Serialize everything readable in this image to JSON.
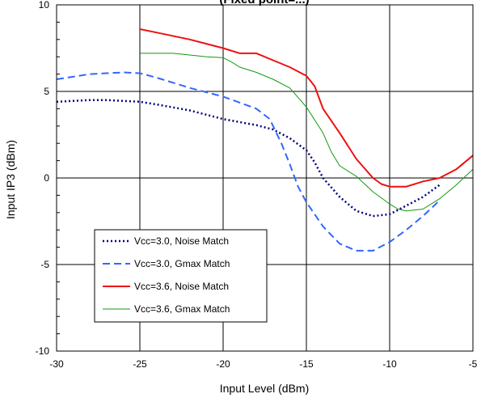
{
  "chart_data": {
    "type": "line",
    "title": "(Fixed point=...)",
    "xlabel": "Input Level (dBm)",
    "ylabel": "Input IP3 (dBm)",
    "xlim": [
      -30,
      -5
    ],
    "ylim": [
      -10,
      10
    ],
    "x_ticks": [
      -30,
      -25,
      -20,
      -15,
      -10,
      -5
    ],
    "y_ticks": [
      -10,
      -5,
      0,
      5,
      10
    ],
    "grid": true,
    "legend_position": "bottom-left",
    "series": [
      {
        "name": "Vcc=3.0, Noise Match",
        "color": "#00007f",
        "dash": "dotted",
        "points": [
          [
            -30,
            4.4
          ],
          [
            -28,
            4.5
          ],
          [
            -27,
            4.5
          ],
          [
            -25,
            4.4
          ],
          [
            -24,
            4.25
          ],
          [
            -22,
            3.9
          ],
          [
            -20,
            3.4
          ],
          [
            -18,
            3.05
          ],
          [
            -17,
            2.8
          ],
          [
            -16,
            2.3
          ],
          [
            -15,
            1.6
          ],
          [
            -14.5,
            0.9
          ],
          [
            -14,
            0.0
          ],
          [
            -13,
            -1.1
          ],
          [
            -12,
            -1.9
          ],
          [
            -11,
            -2.2
          ],
          [
            -10,
            -2.1
          ],
          [
            -9,
            -1.6
          ],
          [
            -8,
            -1.1
          ],
          [
            -7,
            -0.4
          ]
        ]
      },
      {
        "name": "Vcc=3.0, Gmax Match",
        "color": "#3366ff",
        "dash": "dashed",
        "points": [
          [
            -30,
            5.7
          ],
          [
            -28,
            6.0
          ],
          [
            -26,
            6.1
          ],
          [
            -25,
            6.05
          ],
          [
            -24,
            5.8
          ],
          [
            -22,
            5.2
          ],
          [
            -20,
            4.7
          ],
          [
            -18,
            4.0
          ],
          [
            -17.2,
            3.4
          ],
          [
            -16.5,
            2.0
          ],
          [
            -16,
            0.8
          ],
          [
            -15.5,
            -0.5
          ],
          [
            -15,
            -1.4
          ],
          [
            -14,
            -2.8
          ],
          [
            -13,
            -3.8
          ],
          [
            -12,
            -4.2
          ],
          [
            -11,
            -4.2
          ],
          [
            -10,
            -3.7
          ],
          [
            -9,
            -3.0
          ],
          [
            -8,
            -2.2
          ],
          [
            -7,
            -1.3
          ]
        ]
      },
      {
        "name": "Vcc=3.6, Noise Match",
        "color": "#ee1111",
        "dash": "solid",
        "points": [
          [
            -25,
            8.6
          ],
          [
            -24,
            8.4
          ],
          [
            -22,
            8.0
          ],
          [
            -20,
            7.5
          ],
          [
            -19,
            7.2
          ],
          [
            -18,
            7.2
          ],
          [
            -17,
            6.8
          ],
          [
            -16,
            6.4
          ],
          [
            -15,
            5.9
          ],
          [
            -14.5,
            5.3
          ],
          [
            -14,
            4.0
          ],
          [
            -13,
            2.6
          ],
          [
            -12,
            1.1
          ],
          [
            -11,
            0.0
          ],
          [
            -10.5,
            -0.35
          ],
          [
            -10,
            -0.5
          ],
          [
            -9.5,
            -0.5
          ],
          [
            -9,
            -0.5
          ],
          [
            -8,
            -0.2
          ],
          [
            -7,
            0.0
          ],
          [
            -6,
            0.5
          ],
          [
            -5,
            1.3
          ]
        ]
      },
      {
        "name": "Vcc=3.6, Gmax Match",
        "color": "#119911",
        "dash": "solid",
        "points": [
          [
            -25,
            7.2
          ],
          [
            -23,
            7.2
          ],
          [
            -21,
            7.0
          ],
          [
            -20,
            6.95
          ],
          [
            -19.5,
            6.7
          ],
          [
            -19,
            6.4
          ],
          [
            -18,
            6.1
          ],
          [
            -17,
            5.7
          ],
          [
            -16,
            5.2
          ],
          [
            -15,
            4.1
          ],
          [
            -14,
            2.6
          ],
          [
            -13.5,
            1.5
          ],
          [
            -13,
            0.7
          ],
          [
            -12,
            0.1
          ],
          [
            -11,
            -0.8
          ],
          [
            -10,
            -1.5
          ],
          [
            -9.5,
            -1.8
          ],
          [
            -9,
            -1.9
          ],
          [
            -8,
            -1.8
          ],
          [
            -7,
            -1.2
          ],
          [
            -6,
            -0.4
          ],
          [
            -5,
            0.5
          ]
        ]
      }
    ]
  }
}
